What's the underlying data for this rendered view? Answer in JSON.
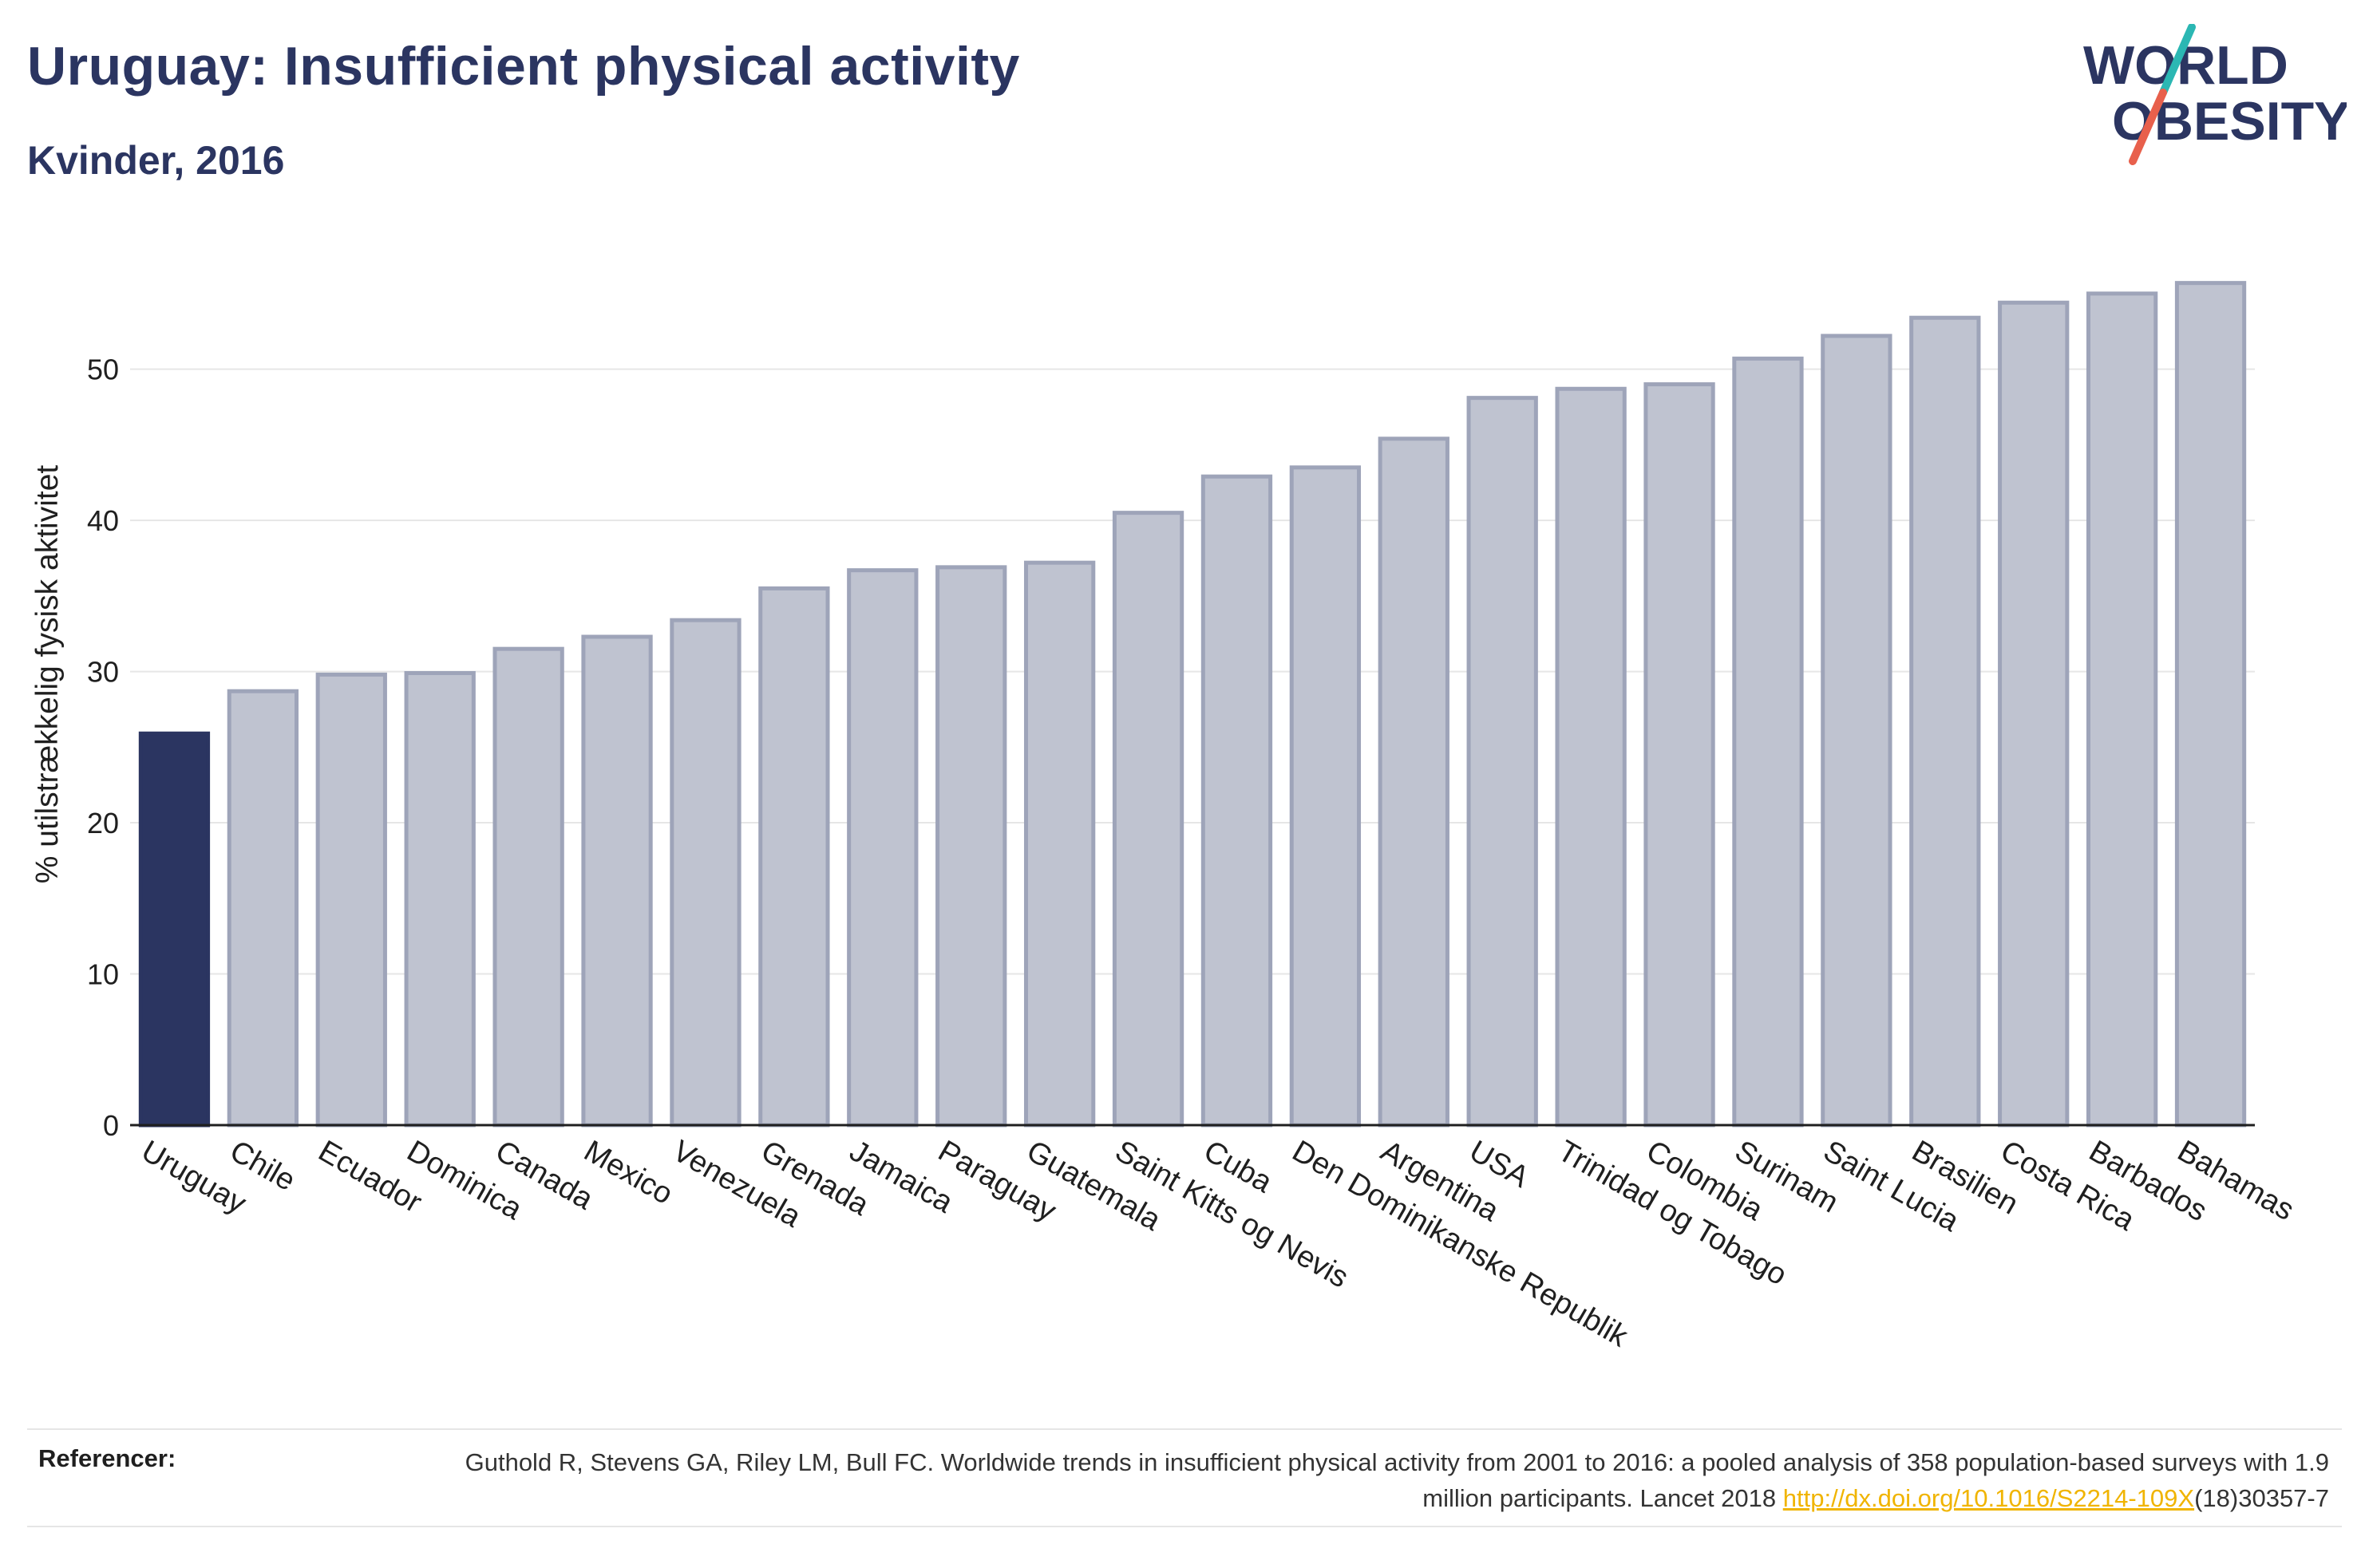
{
  "header": {
    "title": "Uruguay: Insufficient physical activity",
    "subtitle": "Kvinder, 2016"
  },
  "logo": {
    "line1": "WORLD",
    "line2": "OBESITY",
    "text_color": "#2b3561",
    "slash_color_top": "#2bb7b3",
    "slash_color_bottom": "#e8604c"
  },
  "colors": {
    "highlight_bar": "#2b3561",
    "other_bar_fill": "#bfc3d0",
    "other_bar_stroke": "#9ea4b9",
    "grid": "#e6e6e6",
    "axis": "#1f1f1f"
  },
  "chart_data": {
    "type": "bar",
    "title": "Uruguay: Insufficient physical activity",
    "subtitle": "Kvinder, 2016",
    "xlabel": "",
    "ylabel": "% utilstrækkelig fysisk aktivitet",
    "ylim": [
      0,
      57
    ],
    "yticks": [
      0,
      10,
      20,
      30,
      40,
      50
    ],
    "grid": true,
    "highlight": "Uruguay",
    "categories": [
      "Uruguay",
      "Chile",
      "Ecuador",
      "Dominica",
      "Canada",
      "Mexico",
      "Venezuela",
      "Grenada",
      "Jamaica",
      "Paraguay",
      "Guatemala",
      "Saint Kitts og Nevis",
      "Cuba",
      "Den Dominikanske Republik",
      "Argentina",
      "USA",
      "Trinidad og Tobago",
      "Colombia",
      "Surinam",
      "Saint Lucia",
      "Brasilien",
      "Costa Rica",
      "Barbados",
      "Bahamas"
    ],
    "values": [
      25.9,
      28.7,
      29.8,
      29.9,
      31.5,
      32.3,
      33.4,
      35.5,
      36.7,
      36.9,
      37.2,
      40.5,
      42.9,
      43.5,
      45.4,
      48.1,
      48.7,
      49.0,
      50.7,
      52.2,
      53.4,
      54.4,
      55.0,
      55.7
    ]
  },
  "references": {
    "label": "Referencer:",
    "text_before_link": "Guthold R, Stevens GA, Riley LM, Bull FC. Worldwide trends in insufficient physical activity from 2001 to 2016: a pooled analysis of 358 population-based surveys with 1.9 million participants. Lancet 2018 ",
    "link_text": "http://dx.doi.org/10.1016/S2214-109X",
    "text_after_link": "(18)30357-7"
  }
}
